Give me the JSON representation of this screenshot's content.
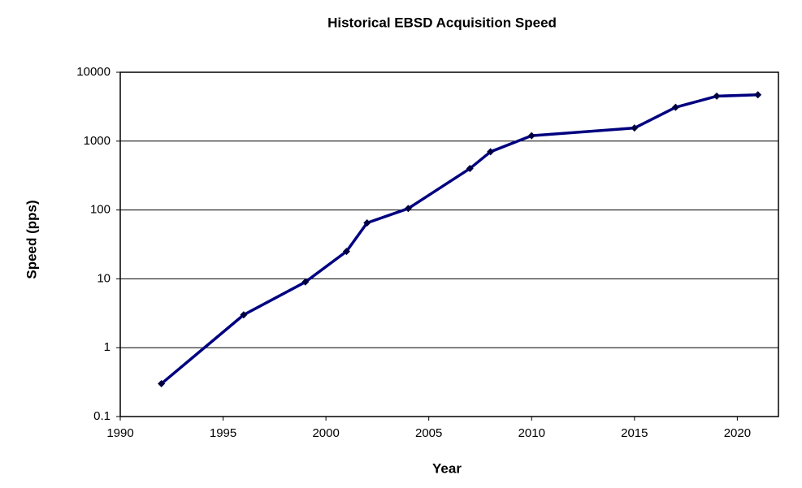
{
  "chart_data": {
    "type": "line",
    "title": "Historical EBSD Acquisition Speed",
    "x_label": "Year",
    "y_label": "Speed (pps)",
    "x": [
      1992,
      1996,
      1999,
      2001,
      2002,
      2004,
      2007,
      2008,
      2010,
      2015,
      2017,
      2019,
      2021
    ],
    "series": [
      {
        "name": "Speed",
        "color": "#000080",
        "values": [
          0.3,
          3,
          9,
          25,
          65,
          105,
          400,
          700,
          1200,
          1550,
          3100,
          4500,
          4700
        ]
      }
    ],
    "xlim": [
      1990,
      2022
    ],
    "xticks": [
      1990,
      1995,
      2000,
      2005,
      2010,
      2015,
      2020
    ],
    "ylim": [
      0.1,
      10000
    ],
    "yticks": [
      0.1,
      1,
      10,
      100,
      1000,
      10000
    ],
    "log_y": true,
    "grid": true
  }
}
